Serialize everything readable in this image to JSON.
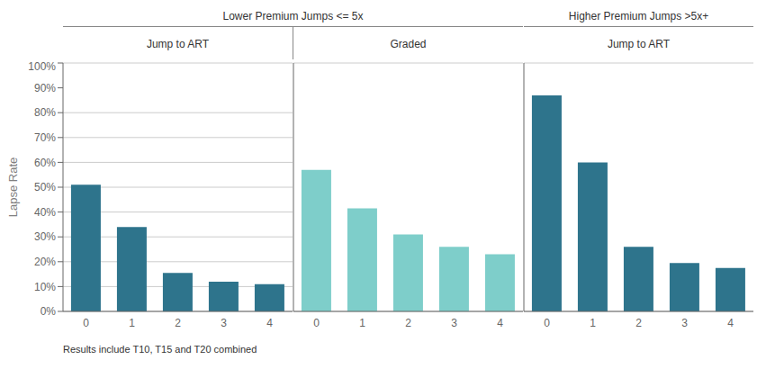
{
  "chart_data": [
    {
      "type": "bar",
      "title": "Lower Premium Jumps <= 5x",
      "subtitle": "Jump to ART",
      "categories": [
        "0",
        "1",
        "2",
        "3",
        "4"
      ],
      "values": [
        0.51,
        0.34,
        0.155,
        0.12,
        0.11
      ],
      "color": "#2E748C",
      "ylabel": "Lapse Rate",
      "ylim": [
        0.0,
        1.0
      ],
      "yticks": [
        {
          "value": 0.0,
          "label": "0%"
        },
        {
          "value": 0.1,
          "label": "10%"
        },
        {
          "value": 0.2,
          "label": "20%"
        },
        {
          "value": 0.3,
          "label": "30%"
        },
        {
          "value": 0.4,
          "label": "40%"
        },
        {
          "value": 0.5,
          "label": "50%"
        },
        {
          "value": 0.6,
          "label": "60%"
        },
        {
          "value": 0.7,
          "label": "70%"
        },
        {
          "value": 0.8,
          "label": "80%"
        },
        {
          "value": 0.9,
          "label": "90%"
        },
        {
          "value": 1.0,
          "label": "100%"
        }
      ],
      "grid": true,
      "annotations": [
        "Results include T10, T15 and T20 combined"
      ]
    },
    {
      "type": "bar",
      "subtitle": "Graded",
      "categories": [
        "0",
        "1",
        "2",
        "3",
        "4"
      ],
      "values": [
        0.57,
        0.415,
        0.31,
        0.26,
        0.23
      ],
      "color": "#7ECECA",
      "ylim": [
        0.0,
        1.0
      ],
      "yticks": [
        0.0,
        0.1,
        0.2,
        0.3,
        0.4,
        0.5,
        0.6,
        0.7,
        0.8,
        0.9,
        1.0
      ],
      "grid": true,
      "tick_labels": "x"
    },
    {
      "type": "bar",
      "title": "Higher Premium Jumps >5x+",
      "subtitle": "Jump to ART",
      "categories": [
        "0",
        "1",
        "2",
        "3",
        "4"
      ],
      "values": [
        0.87,
        0.6,
        0.26,
        0.195,
        0.175
      ],
      "color": "#2E748C",
      "ylim": [
        0.0,
        1.0
      ],
      "yticks": [
        0.0,
        0.1,
        0.2,
        0.3,
        0.4,
        0.5,
        0.6,
        0.7,
        0.8,
        0.9,
        1.0
      ],
      "grid": true,
      "tick_labels": "x"
    }
  ]
}
